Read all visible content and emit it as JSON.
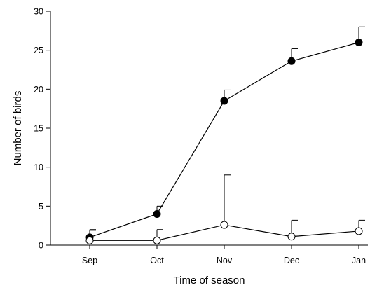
{
  "chart_data": {
    "type": "line",
    "title": "",
    "xlabel": "Time of season",
    "ylabel": "Number of birds",
    "categories": [
      "Sep",
      "Oct",
      "Nov",
      "Dec",
      "Jan"
    ],
    "ylim": [
      0,
      30
    ],
    "yticks": [
      0,
      5,
      10,
      15,
      20,
      25,
      30
    ],
    "grid": false,
    "legend": "none",
    "error_bars": "upper",
    "series": [
      {
        "marker": "filled-circle",
        "color": "#000000",
        "values": [
          1.0,
          4.0,
          18.5,
          23.6,
          26.0
        ],
        "error": [
          1.0,
          1.0,
          1.4,
          1.6,
          2.0
        ]
      },
      {
        "marker": "open-circle",
        "color": "#000000",
        "values": [
          0.6,
          0.6,
          2.6,
          1.1,
          1.8
        ],
        "error": [
          1.3,
          1.4,
          6.4,
          2.1,
          1.4
        ]
      }
    ]
  }
}
